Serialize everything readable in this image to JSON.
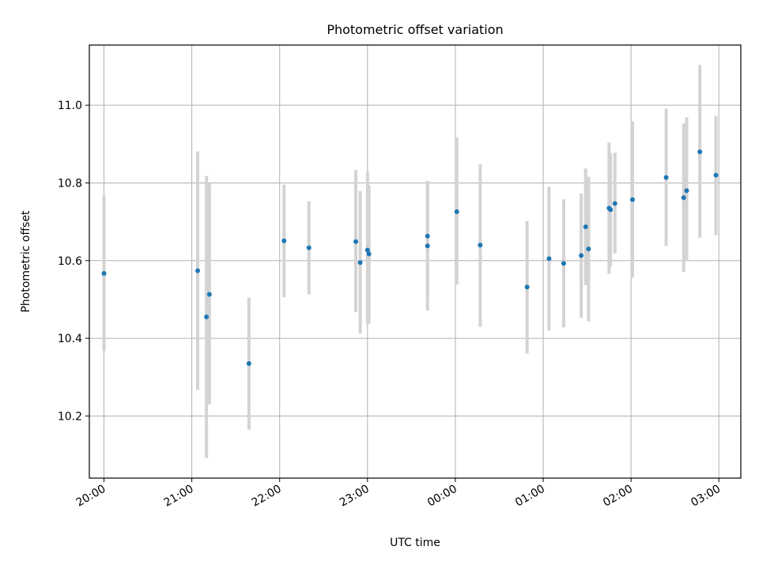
{
  "chart_data": {
    "type": "scatter",
    "title": "Photometric offset variation",
    "xlabel": "UTC time",
    "ylabel": "Photometric offset",
    "xlim": [
      "19:50",
      "03:15"
    ],
    "ylim": [
      10.04,
      11.155
    ],
    "x_ticks": [
      "20:00",
      "21:00",
      "22:00",
      "23:00",
      "00:00",
      "01:00",
      "02:00",
      "03:00"
    ],
    "y_ticks": [
      "10.2",
      "10.4",
      "10.6",
      "10.8",
      "11.0"
    ],
    "y_tick_values": [
      10.2,
      10.4,
      10.6,
      10.8,
      11.0
    ],
    "grid": true,
    "point_color": "#1f77b4",
    "errorbar_color": "#d3d3d3",
    "series": [
      {
        "x": [
          "20:00",
          "21:04",
          "21:10",
          "21:12",
          "21:39",
          "22:03",
          "22:20",
          "22:52",
          "22:55",
          "23:00",
          "23:01",
          "23:41",
          "23:41",
          "00:01",
          "00:17",
          "00:49",
          "01:04",
          "01:14",
          "01:26",
          "01:29",
          "01:31",
          "01:45",
          "01:46",
          "01:49",
          "02:01",
          "02:24",
          "02:36",
          "02:38",
          "02:47",
          "02:58"
        ],
        "y": [
          10.567,
          10.574,
          10.455,
          10.513,
          10.335,
          10.651,
          10.633,
          10.649,
          10.595,
          10.627,
          10.617,
          10.638,
          10.663,
          10.726,
          10.64,
          10.532,
          10.605,
          10.593,
          10.613,
          10.687,
          10.63,
          10.735,
          10.731,
          10.747,
          10.757,
          10.814,
          10.762,
          10.78,
          10.88,
          10.82
        ],
        "err_low": [
          10.367,
          10.267,
          10.092,
          10.23,
          10.165,
          10.506,
          10.513,
          10.467,
          10.412,
          10.437,
          10.437,
          10.471,
          10.521,
          10.538,
          10.43,
          10.361,
          10.42,
          10.428,
          10.453,
          10.537,
          10.444,
          10.566,
          10.586,
          10.618,
          10.556,
          10.638,
          10.571,
          10.599,
          10.659,
          10.666
        ],
        "err_high": [
          10.767,
          10.881,
          10.818,
          10.8,
          10.505,
          10.796,
          10.753,
          10.833,
          10.779,
          10.829,
          10.793,
          10.805,
          10.805,
          10.918,
          10.848,
          10.702,
          10.79,
          10.758,
          10.773,
          10.837,
          10.816,
          10.904,
          10.876,
          10.878,
          10.959,
          10.991,
          10.953,
          10.969,
          11.104,
          10.973
        ]
      }
    ]
  }
}
